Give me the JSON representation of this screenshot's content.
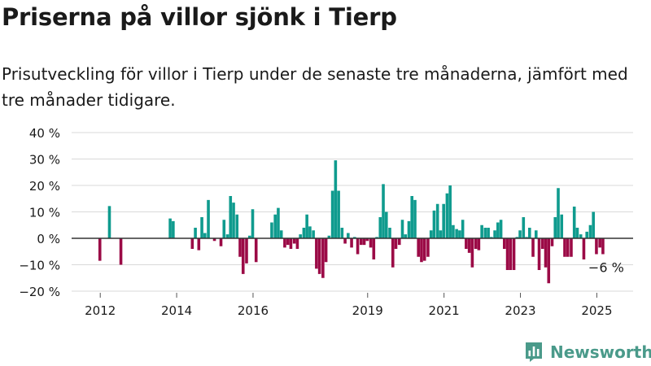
{
  "title": "Priserna på villor sjönk i Tierp",
  "subtitle": "Prisutveckling för villor i Tierp under de senaste tre månaderna, jämfört med tre månader tidigare.",
  "brand": {
    "name": "Newsworthy",
    "icon": "newsworthy-logo-icon"
  },
  "colors": {
    "positive": "#0f9b8e",
    "negative": "#9b0a46",
    "brand": "#4a9a8a",
    "grid": "#d9d9d9",
    "zero_line": "#333333",
    "text": "#1a1a1a"
  },
  "chart_data": {
    "type": "bar",
    "ylim": [
      -20,
      40
    ],
    "yticks": [
      -20,
      -10,
      0,
      10,
      20,
      30,
      40
    ],
    "ytick_labels": [
      "−20 %",
      "−10 %",
      "0 %",
      "10 %",
      "20 %",
      "30 %",
      "40 %"
    ],
    "xticks": [
      2012,
      2014,
      2016,
      2019,
      2021,
      2023,
      2025
    ],
    "xtick_labels": [
      "2012",
      "2014",
      "2016",
      "2019",
      "2021",
      "2023",
      "2025"
    ],
    "xlim": [
      2011.25,
      2025.95
    ],
    "grid": true,
    "x": [
      2011.99,
      2012.24,
      2012.54,
      2013.83,
      2013.91,
      2014.41,
      2014.49,
      2014.58,
      2014.66,
      2014.74,
      2014.83,
      2014.99,
      2015.16,
      2015.24,
      2015.33,
      2015.41,
      2015.49,
      2015.58,
      2015.66,
      2015.74,
      2015.83,
      2015.91,
      2015.99,
      2016.08,
      2016.49,
      2016.58,
      2016.66,
      2016.74,
      2016.83,
      2016.91,
      2016.99,
      2017.08,
      2017.16,
      2017.24,
      2017.33,
      2017.41,
      2017.49,
      2017.58,
      2017.66,
      2017.74,
      2017.83,
      2017.91,
      2017.99,
      2018.08,
      2018.16,
      2018.24,
      2018.33,
      2018.41,
      2018.49,
      2018.58,
      2018.66,
      2018.74,
      2018.83,
      2018.91,
      2018.99,
      2019.08,
      2019.16,
      2019.24,
      2019.33,
      2019.41,
      2019.49,
      2019.58,
      2019.66,
      2019.74,
      2019.83,
      2019.91,
      2019.99,
      2020.08,
      2020.16,
      2020.24,
      2020.33,
      2020.41,
      2020.49,
      2020.58,
      2020.66,
      2020.74,
      2020.83,
      2020.91,
      2020.99,
      2021.08,
      2021.16,
      2021.24,
      2021.33,
      2021.41,
      2021.49,
      2021.58,
      2021.66,
      2021.74,
      2021.83,
      2021.91,
      2021.99,
      2022.08,
      2022.16,
      2022.24,
      2022.33,
      2022.41,
      2022.49,
      2022.58,
      2022.66,
      2022.74,
      2022.83,
      2022.91,
      2022.99,
      2023.08,
      2023.16,
      2023.24,
      2023.33,
      2023.41,
      2023.49,
      2023.58,
      2023.66,
      2023.74,
      2023.83,
      2023.91,
      2023.99,
      2024.08,
      2024.16,
      2024.24,
      2024.33,
      2024.41,
      2024.49,
      2024.58,
      2024.66,
      2024.74,
      2024.83,
      2024.91,
      2024.99,
      2025.08,
      2025.16
    ],
    "values": [
      -8.5,
      12.2,
      -10,
      7.5,
      6.5,
      -4,
      4,
      -4.5,
      8,
      2,
      14.5,
      -1,
      -3,
      7,
      1.5,
      16,
      13.5,
      9,
      -7,
      -13.5,
      -9.5,
      1,
      11,
      -9,
      6,
      9,
      11.5,
      3,
      -3.5,
      -2.5,
      -4,
      -2,
      -4,
      1.5,
      4,
      9,
      4.5,
      3,
      -11.5,
      -13.5,
      -15,
      -9,
      1,
      18,
      29.5,
      18,
      4,
      -2,
      2,
      -3.5,
      0.5,
      -6,
      -2.5,
      -2.5,
      -1,
      -3.5,
      -8,
      0.5,
      8,
      20.5,
      10,
      4,
      -11,
      -4,
      -2.5,
      7,
      1.5,
      6.5,
      16,
      14.5,
      -7,
      -9,
      -8.5,
      -7,
      3,
      10.5,
      13,
      3,
      13,
      17,
      20,
      5,
      3.5,
      3,
      7,
      -4,
      -5.5,
      -11,
      -4,
      -4.5,
      5,
      4,
      4,
      0.5,
      3,
      6,
      7,
      -4,
      -12,
      -12,
      -12,
      0.5,
      3,
      8,
      0.5,
      4,
      -7,
      3,
      -12,
      -4,
      -11,
      -17,
      -3,
      8,
      19,
      9,
      -7,
      -7,
      -7,
      12,
      4,
      1.5,
      -8,
      2.5,
      5,
      10,
      -6,
      -3.5,
      -6
    ],
    "annotations": [
      {
        "text": "−6 %",
        "x": 2025.16,
        "y": -6
      }
    ]
  }
}
